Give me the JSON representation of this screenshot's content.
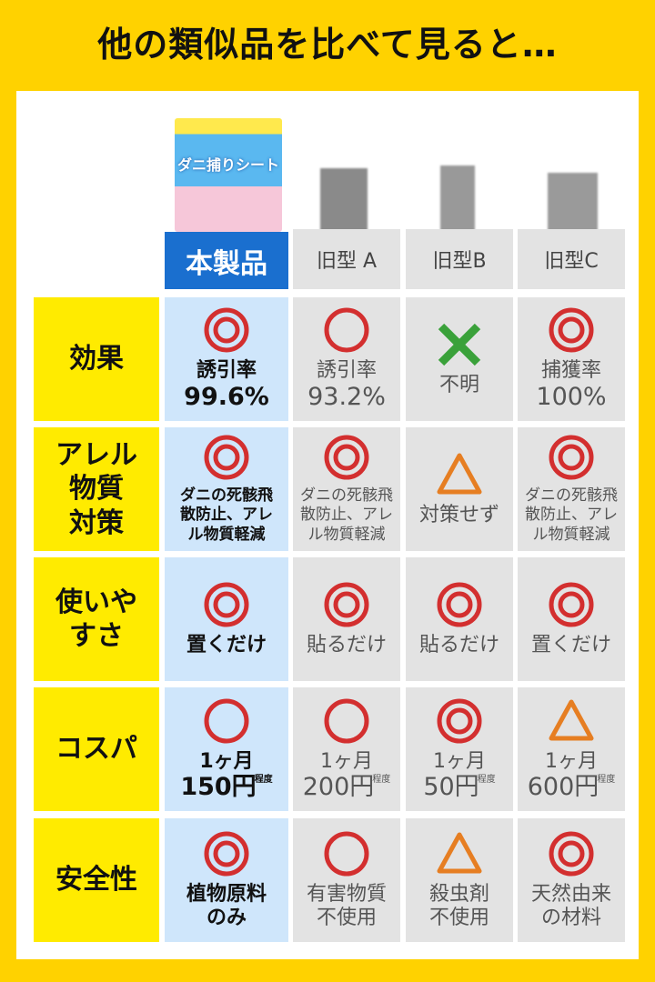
{
  "title": "他の類似品を比べて見ると…",
  "colors": {
    "background": "#FFD200",
    "label": "#FFEB00",
    "product": "#cfe6fb",
    "header_product": "#1a6fcf",
    "other": "#e3e3e3",
    "double_circle": "#d32f2f",
    "circle": "#d32f2f",
    "cross": "#3aa13a",
    "triangle": "#e67e22"
  },
  "columns": [
    "本製品",
    "旧型 A",
    "旧型B",
    "旧型C"
  ],
  "product_image_text": "ダニ捕りシート",
  "rows": [
    {
      "label": "効果",
      "cells": [
        {
          "sym": "double-circle",
          "lines": [
            "誘引率",
            "99.6%"
          ]
        },
        {
          "sym": "circle",
          "lines": [
            "誘引率",
            "93.2%"
          ]
        },
        {
          "sym": "cross",
          "lines": [
            "不明"
          ]
        },
        {
          "sym": "double-circle",
          "lines": [
            "捕獲率",
            "100%"
          ]
        }
      ]
    },
    {
      "label": "アレル\n物質\n対策",
      "cells": [
        {
          "sym": "double-circle",
          "lines": [
            "ダニの死骸飛",
            "散防止、アレ",
            "ル物質軽減"
          ]
        },
        {
          "sym": "double-circle",
          "lines": [
            "ダニの死骸飛",
            "散防止、アレ",
            "ル物質軽減"
          ]
        },
        {
          "sym": "triangle",
          "lines": [
            "対策せず"
          ]
        },
        {
          "sym": "double-circle",
          "lines": [
            "ダニの死骸飛",
            "散防止、アレ",
            "ル物質軽減"
          ]
        }
      ]
    },
    {
      "label": "使いや\nすさ",
      "cells": [
        {
          "sym": "double-circle",
          "lines": [
            "置くだけ"
          ]
        },
        {
          "sym": "double-circle",
          "lines": [
            "貼るだけ"
          ]
        },
        {
          "sym": "double-circle",
          "lines": [
            "貼るだけ"
          ]
        },
        {
          "sym": "double-circle",
          "lines": [
            "置くだけ"
          ]
        }
      ]
    },
    {
      "label": "コスパ",
      "cells": [
        {
          "sym": "circle",
          "lines": [
            "1ヶ月"
          ],
          "price": "150円",
          "note": "程度"
        },
        {
          "sym": "circle",
          "lines": [
            "1ヶ月"
          ],
          "price": "200円",
          "note": "程度"
        },
        {
          "sym": "double-circle",
          "lines": [
            "1ヶ月"
          ],
          "price": "50円",
          "note": "程度"
        },
        {
          "sym": "triangle",
          "lines": [
            "1ヶ月"
          ],
          "price": "600円",
          "note": "程度"
        }
      ]
    },
    {
      "label": "安全性",
      "cells": [
        {
          "sym": "double-circle",
          "lines": [
            "植物原料",
            "のみ"
          ]
        },
        {
          "sym": "circle",
          "lines": [
            "有害物質",
            "不使用"
          ]
        },
        {
          "sym": "triangle",
          "lines": [
            "殺虫剤",
            "不使用"
          ]
        },
        {
          "sym": "double-circle",
          "lines": [
            "天然由来",
            "の材料"
          ]
        }
      ]
    }
  ]
}
